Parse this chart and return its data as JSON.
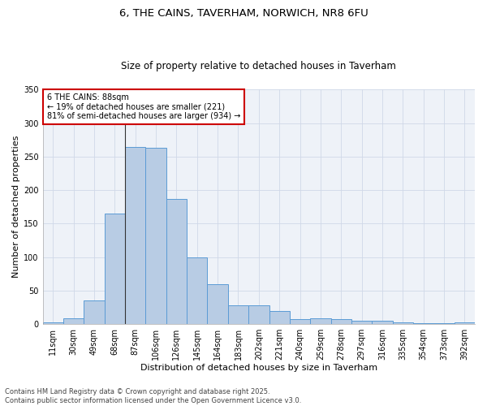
{
  "title_line1": "6, THE CAINS, TAVERHAM, NORWICH, NR8 6FU",
  "title_line2": "Size of property relative to detached houses in Taverham",
  "xlabel": "Distribution of detached houses by size in Taverham",
  "ylabel": "Number of detached properties",
  "categories": [
    "11sqm",
    "30sqm",
    "49sqm",
    "68sqm",
    "87sqm",
    "106sqm",
    "126sqm",
    "145sqm",
    "164sqm",
    "183sqm",
    "202sqm",
    "221sqm",
    "240sqm",
    "259sqm",
    "278sqm",
    "297sqm",
    "316sqm",
    "335sqm",
    "354sqm",
    "373sqm",
    "392sqm"
  ],
  "values": [
    2,
    9,
    35,
    165,
    265,
    263,
    187,
    100,
    60,
    28,
    28,
    20,
    7,
    9,
    7,
    5,
    5,
    2,
    1,
    1,
    2
  ],
  "bar_color": "#b8cce4",
  "bar_edgecolor": "#5b9bd5",
  "property_line_index": 4,
  "annotation_text": "6 THE CAINS: 88sqm\n← 19% of detached houses are smaller (221)\n81% of semi-detached houses are larger (934) →",
  "annotation_box_color": "#ffffff",
  "annotation_box_edgecolor": "#cc0000",
  "ylim": [
    0,
    350
  ],
  "yticks": [
    0,
    50,
    100,
    150,
    200,
    250,
    300,
    350
  ],
  "grid_color": "#d0d8e8",
  "background_color": "#eef2f8",
  "footer_line1": "Contains HM Land Registry data © Crown copyright and database right 2025.",
  "footer_line2": "Contains public sector information licensed under the Open Government Licence v3.0.",
  "title_fontsize": 9.5,
  "subtitle_fontsize": 8.5,
  "axis_label_fontsize": 8,
  "tick_fontsize": 7,
  "annotation_fontsize": 7,
  "footer_fontsize": 6
}
